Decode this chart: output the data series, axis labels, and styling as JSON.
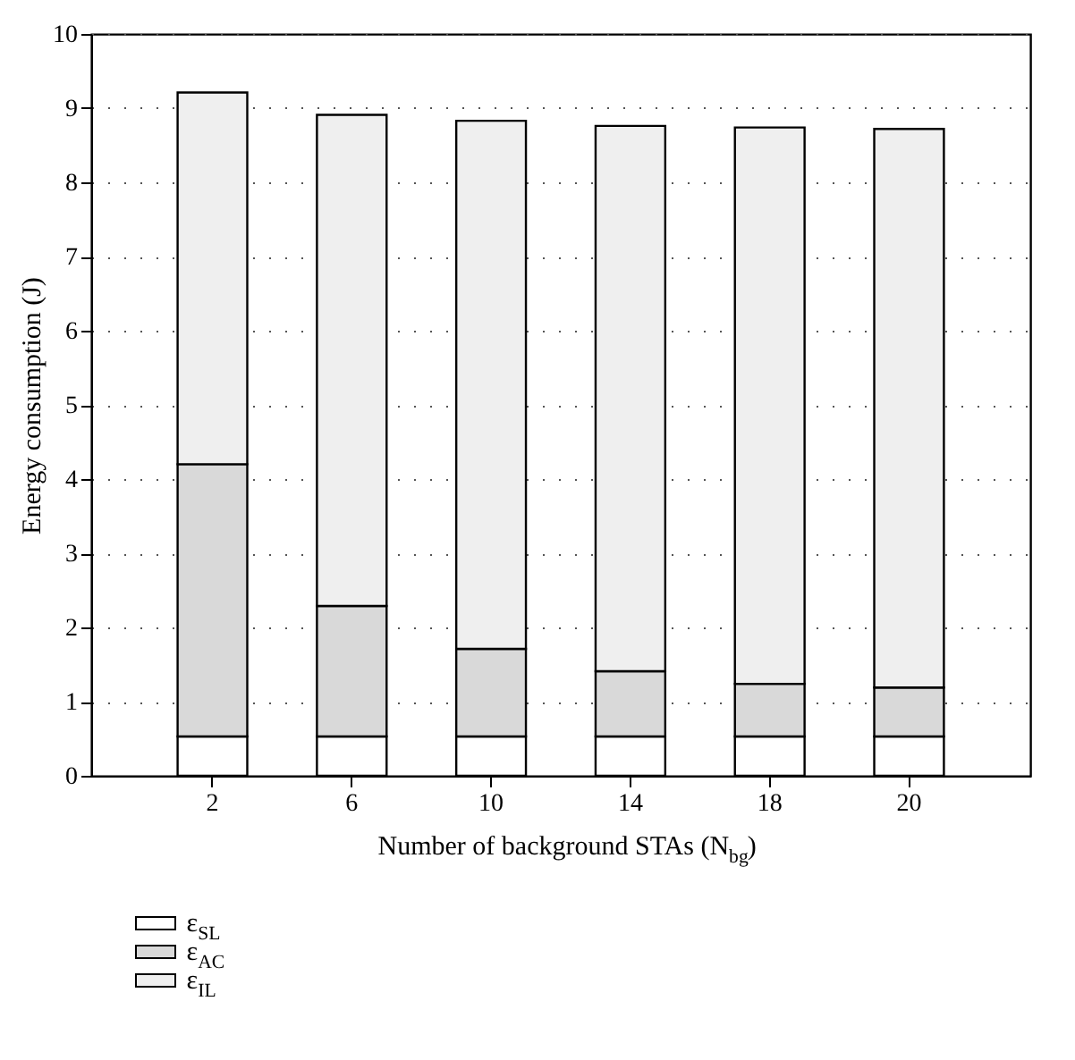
{
  "chart_data": {
    "type": "bar",
    "stacked": true,
    "xlabel": "Number of background STAs (N$_{bg}$)",
    "ylabel": "Energy consumption (J)",
    "categories": [
      "2",
      "6",
      "10",
      "14",
      "18",
      "20"
    ],
    "series": [
      {
        "name": "ε$_{SL}$",
        "color": "#ffffff",
        "values": [
          0.53,
          0.53,
          0.53,
          0.53,
          0.53,
          0.53
        ]
      },
      {
        "name": "ε$_{AC}$",
        "color": "#d9d9d9",
        "values": [
          3.67,
          1.76,
          1.18,
          0.88,
          0.71,
          0.66
        ]
      },
      {
        "name": "ε$_{IL}$",
        "color": "#efefef",
        "values": [
          5.01,
          6.62,
          7.12,
          7.35,
          7.5,
          7.53
        ]
      }
    ],
    "ylim": [
      0,
      10
    ],
    "yticks": [
      0,
      1,
      2,
      3,
      4,
      5,
      6,
      7,
      8,
      9,
      10
    ],
    "grid": "y",
    "legend": "bottom left"
  }
}
